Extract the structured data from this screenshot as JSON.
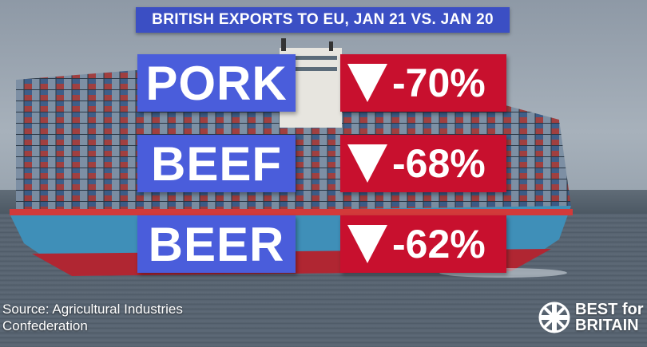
{
  "title": "BRITISH EXPORTS TO EU, JAN 21 VS. JAN 20",
  "rows": [
    {
      "label": "PORK",
      "change": "-70%"
    },
    {
      "label": "BEEF",
      "change": "-68%"
    },
    {
      "label": "BEER",
      "change": "-62%"
    }
  ],
  "source": {
    "line1": "Source: Agricultural Industries",
    "line2": "Confederation"
  },
  "logo": {
    "line1": "BEST for",
    "line2": "BRITAIN",
    "icon": "union-flag-circle-icon"
  },
  "colors": {
    "title_bg": "#3b4fc4",
    "label_bg": "#4a5ddb",
    "value_bg": "#c8102e"
  },
  "background": {
    "icon": "container-ship-photo"
  }
}
